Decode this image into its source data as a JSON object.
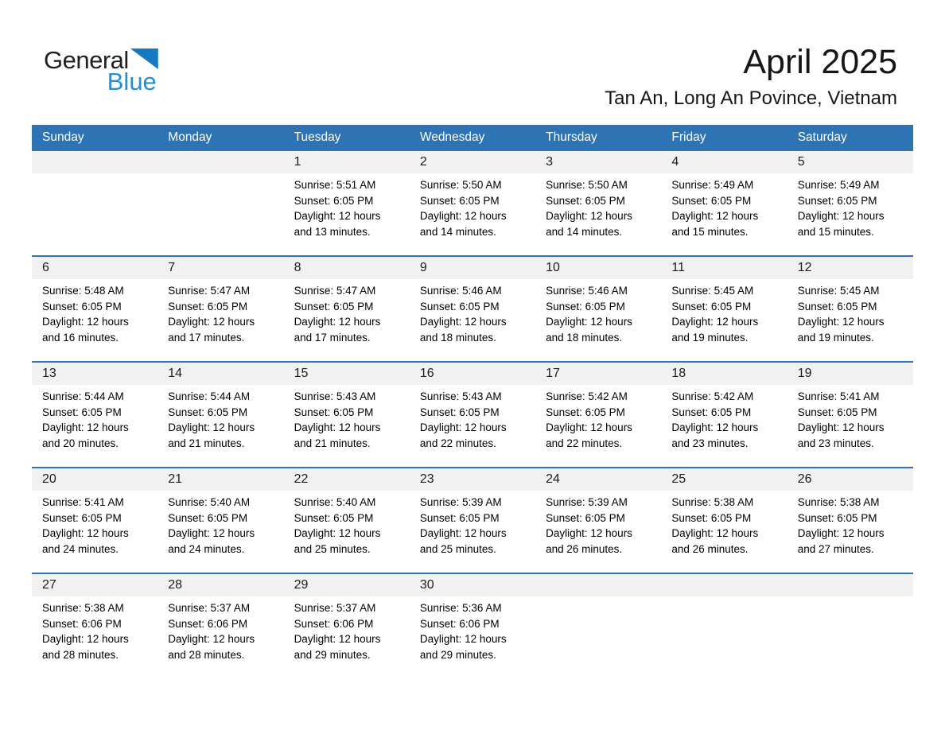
{
  "logo": {
    "general": "General",
    "blue": "Blue"
  },
  "header": {
    "title": "April 2025",
    "subtitle": "Tan An, Long An Povince, Vietnam"
  },
  "colors": {
    "header_blue": "#2E74B5",
    "row_line_blue": "#2E74B5",
    "strip_gray": "#F1F1F1",
    "logo_triangle_blue": "#1779C2",
    "logo_text_blue": "#2191D0"
  },
  "calendar": {
    "weekday_headers": [
      "Sunday",
      "Monday",
      "Tuesday",
      "Wednesday",
      "Thursday",
      "Friday",
      "Saturday"
    ],
    "labels": {
      "sunrise": "Sunrise:",
      "sunset": "Sunset:",
      "daylight": "Daylight:"
    },
    "weeks": [
      [
        null,
        null,
        {
          "day": "1",
          "sunrise": "5:51 AM",
          "sunset": "6:05 PM",
          "daylight": [
            "12 hours",
            "and 13 minutes."
          ]
        },
        {
          "day": "2",
          "sunrise": "5:50 AM",
          "sunset": "6:05 PM",
          "daylight": [
            "12 hours",
            "and 14 minutes."
          ]
        },
        {
          "day": "3",
          "sunrise": "5:50 AM",
          "sunset": "6:05 PM",
          "daylight": [
            "12 hours",
            "and 14 minutes."
          ]
        },
        {
          "day": "4",
          "sunrise": "5:49 AM",
          "sunset": "6:05 PM",
          "daylight": [
            "12 hours",
            "and 15 minutes."
          ]
        },
        {
          "day": "5",
          "sunrise": "5:49 AM",
          "sunset": "6:05 PM",
          "daylight": [
            "12 hours",
            "and 15 minutes."
          ]
        }
      ],
      [
        {
          "day": "6",
          "sunrise": "5:48 AM",
          "sunset": "6:05 PM",
          "daylight": [
            "12 hours",
            "and 16 minutes."
          ]
        },
        {
          "day": "7",
          "sunrise": "5:47 AM",
          "sunset": "6:05 PM",
          "daylight": [
            "12 hours",
            "and 17 minutes."
          ]
        },
        {
          "day": "8",
          "sunrise": "5:47 AM",
          "sunset": "6:05 PM",
          "daylight": [
            "12 hours",
            "and 17 minutes."
          ]
        },
        {
          "day": "9",
          "sunrise": "5:46 AM",
          "sunset": "6:05 PM",
          "daylight": [
            "12 hours",
            "and 18 minutes."
          ]
        },
        {
          "day": "10",
          "sunrise": "5:46 AM",
          "sunset": "6:05 PM",
          "daylight": [
            "12 hours",
            "and 18 minutes."
          ]
        },
        {
          "day": "11",
          "sunrise": "5:45 AM",
          "sunset": "6:05 PM",
          "daylight": [
            "12 hours",
            "and 19 minutes."
          ]
        },
        {
          "day": "12",
          "sunrise": "5:45 AM",
          "sunset": "6:05 PM",
          "daylight": [
            "12 hours",
            "and 19 minutes."
          ]
        }
      ],
      [
        {
          "day": "13",
          "sunrise": "5:44 AM",
          "sunset": "6:05 PM",
          "daylight": [
            "12 hours",
            "and 20 minutes."
          ]
        },
        {
          "day": "14",
          "sunrise": "5:44 AM",
          "sunset": "6:05 PM",
          "daylight": [
            "12 hours",
            "and 21 minutes."
          ]
        },
        {
          "day": "15",
          "sunrise": "5:43 AM",
          "sunset": "6:05 PM",
          "daylight": [
            "12 hours",
            "and 21 minutes."
          ]
        },
        {
          "day": "16",
          "sunrise": "5:43 AM",
          "sunset": "6:05 PM",
          "daylight": [
            "12 hours",
            "and 22 minutes."
          ]
        },
        {
          "day": "17",
          "sunrise": "5:42 AM",
          "sunset": "6:05 PM",
          "daylight": [
            "12 hours",
            "and 22 minutes."
          ]
        },
        {
          "day": "18",
          "sunrise": "5:42 AM",
          "sunset": "6:05 PM",
          "daylight": [
            "12 hours",
            "and 23 minutes."
          ]
        },
        {
          "day": "19",
          "sunrise": "5:41 AM",
          "sunset": "6:05 PM",
          "daylight": [
            "12 hours",
            "and 23 minutes."
          ]
        }
      ],
      [
        {
          "day": "20",
          "sunrise": "5:41 AM",
          "sunset": "6:05 PM",
          "daylight": [
            "12 hours",
            "and 24 minutes."
          ]
        },
        {
          "day": "21",
          "sunrise": "5:40 AM",
          "sunset": "6:05 PM",
          "daylight": [
            "12 hours",
            "and 24 minutes."
          ]
        },
        {
          "day": "22",
          "sunrise": "5:40 AM",
          "sunset": "6:05 PM",
          "daylight": [
            "12 hours",
            "and 25 minutes."
          ]
        },
        {
          "day": "23",
          "sunrise": "5:39 AM",
          "sunset": "6:05 PM",
          "daylight": [
            "12 hours",
            "and 25 minutes."
          ]
        },
        {
          "day": "24",
          "sunrise": "5:39 AM",
          "sunset": "6:05 PM",
          "daylight": [
            "12 hours",
            "and 26 minutes."
          ]
        },
        {
          "day": "25",
          "sunrise": "5:38 AM",
          "sunset": "6:05 PM",
          "daylight": [
            "12 hours",
            "and 26 minutes."
          ]
        },
        {
          "day": "26",
          "sunrise": "5:38 AM",
          "sunset": "6:05 PM",
          "daylight": [
            "12 hours",
            "and 27 minutes."
          ]
        }
      ],
      [
        {
          "day": "27",
          "sunrise": "5:38 AM",
          "sunset": "6:06 PM",
          "daylight": [
            "12 hours",
            "and 28 minutes."
          ]
        },
        {
          "day": "28",
          "sunrise": "5:37 AM",
          "sunset": "6:06 PM",
          "daylight": [
            "12 hours",
            "and 28 minutes."
          ]
        },
        {
          "day": "29",
          "sunrise": "5:37 AM",
          "sunset": "6:06 PM",
          "daylight": [
            "12 hours",
            "and 29 minutes."
          ]
        },
        {
          "day": "30",
          "sunrise": "5:36 AM",
          "sunset": "6:06 PM",
          "daylight": [
            "12 hours",
            "and 29 minutes."
          ]
        },
        null,
        null,
        null
      ]
    ]
  }
}
